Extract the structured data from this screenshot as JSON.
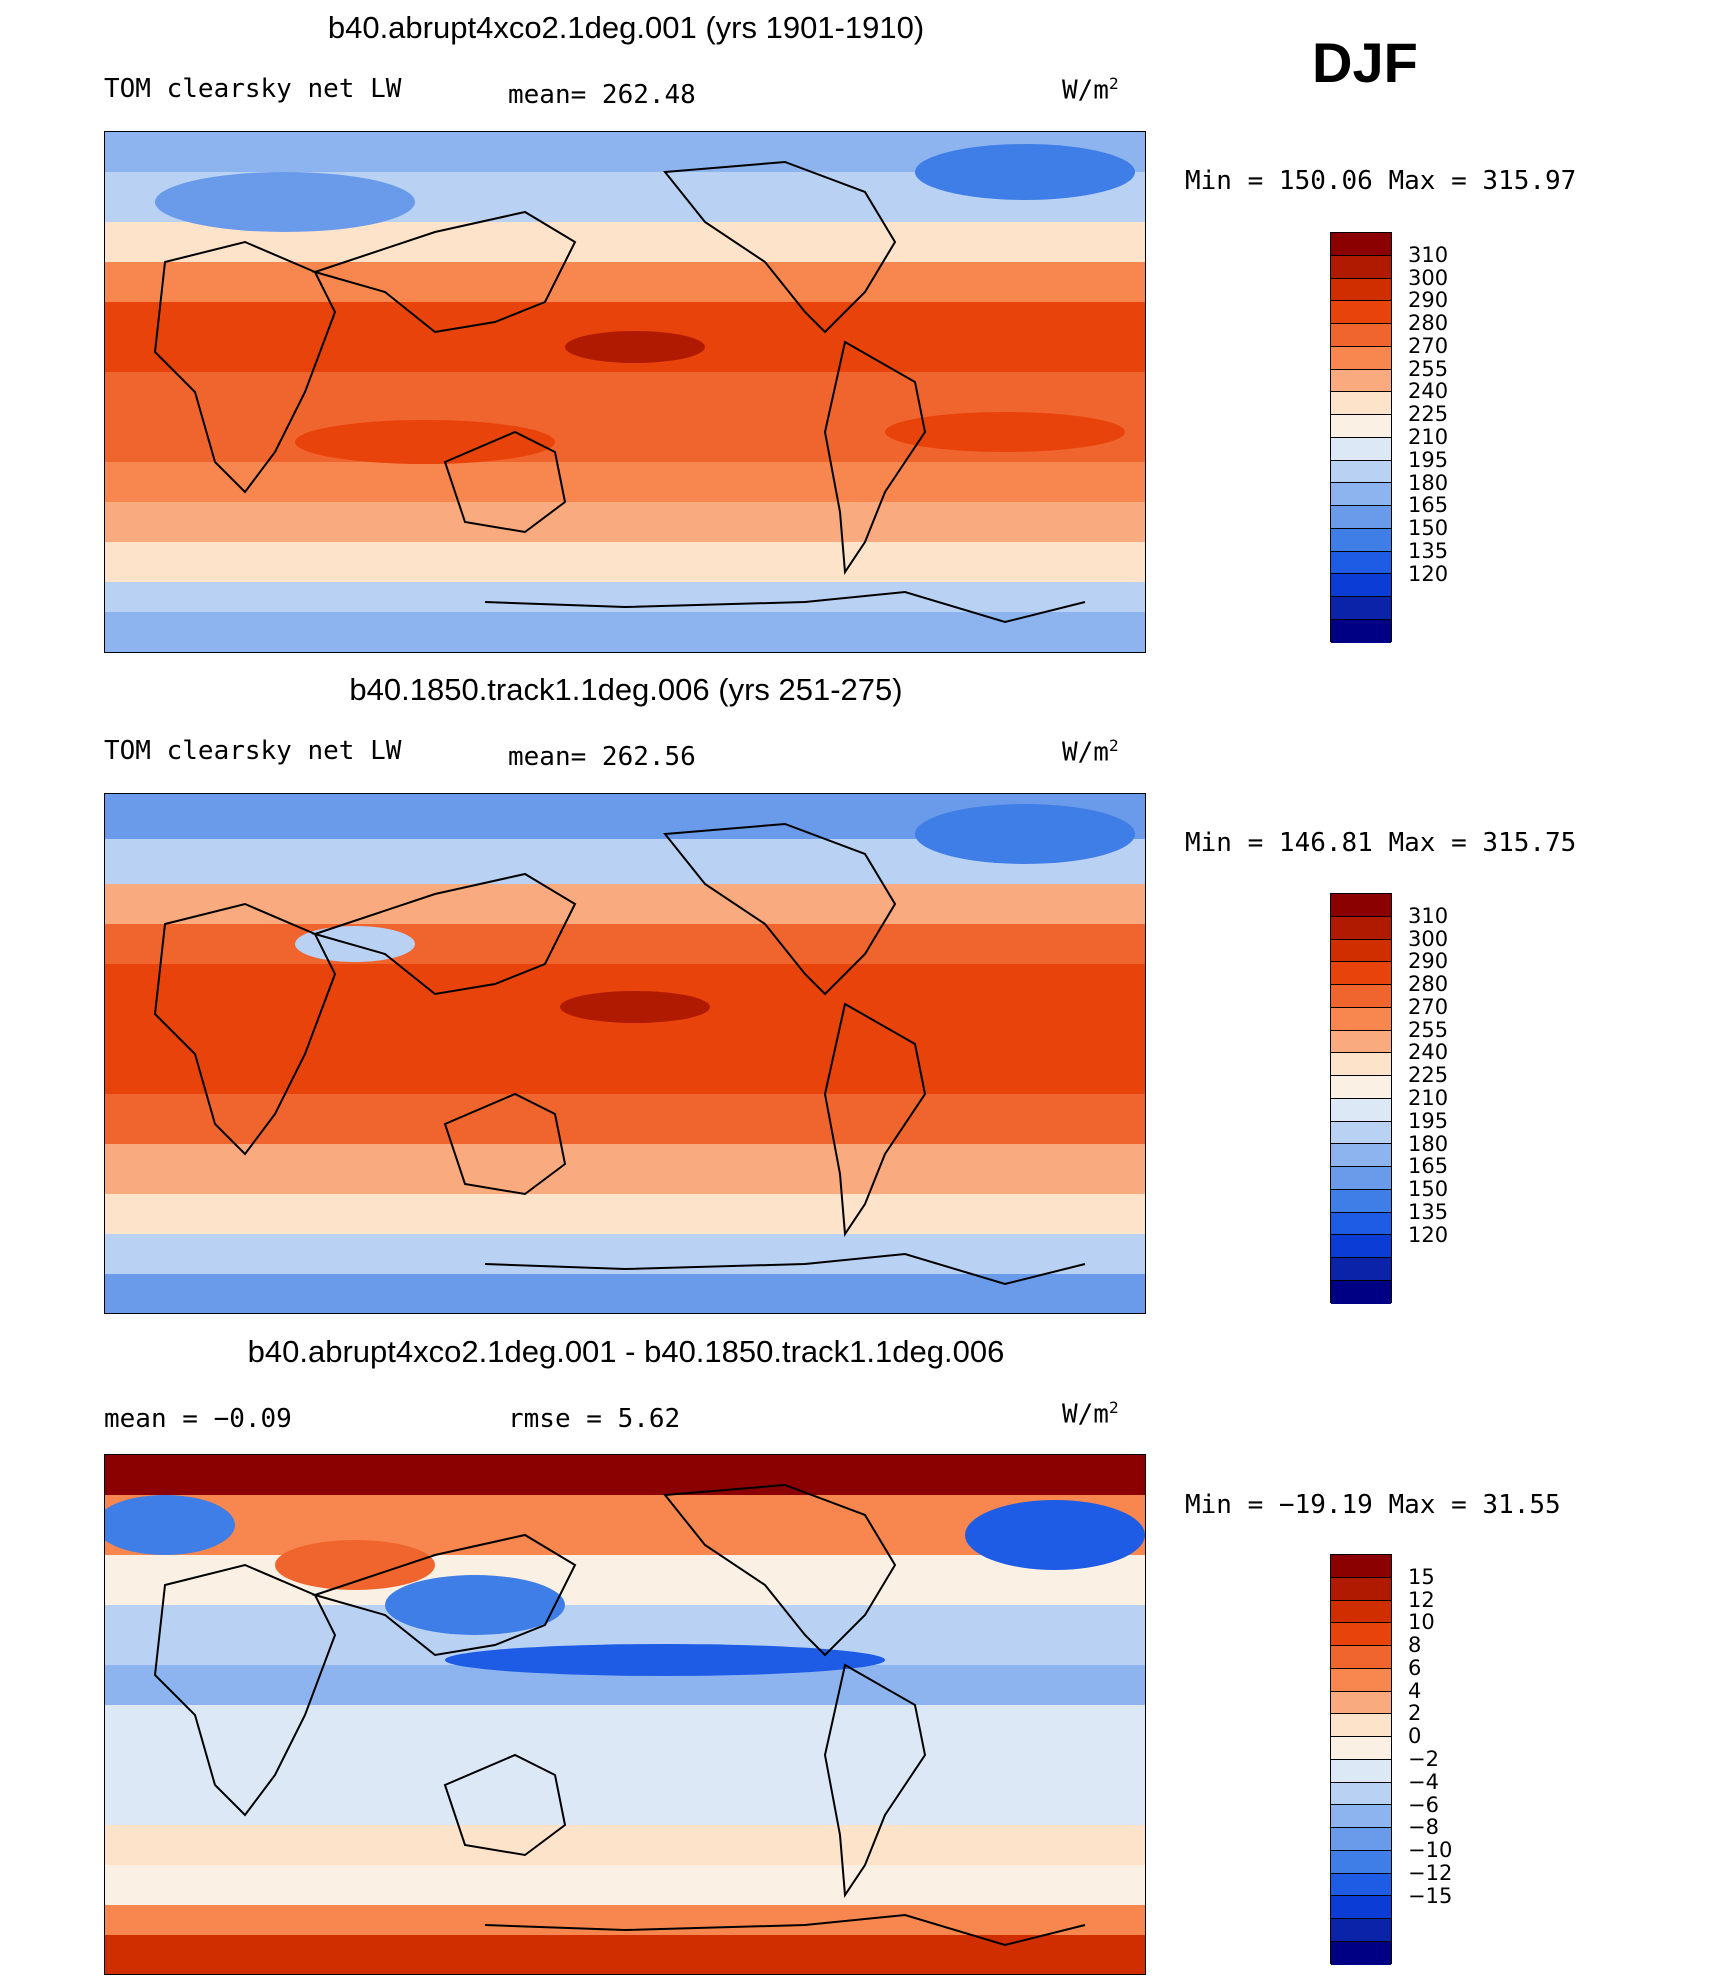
{
  "season": "DJF",
  "panels": [
    {
      "title": "b40.abrupt4xco2.1deg.001 (yrs 1901-1910)",
      "variable": "TOM clearsky net LW",
      "stat1": "mean= 262.48",
      "stat2": "",
      "units": "W/m",
      "units_sup": "2",
      "minmax": "Min = 150.06 Max = 315.97",
      "type": "abs"
    },
    {
      "title": "b40.1850.track1.1deg.006 (yrs 251-275)",
      "variable": "TOM clearsky net LW",
      "stat1": "mean= 262.56",
      "stat2": "",
      "units": "W/m",
      "units_sup": "2",
      "minmax": "Min = 146.81 Max = 315.75",
      "type": "abs"
    },
    {
      "title": "b40.abrupt4xco2.1deg.001 - b40.1850.track1.1deg.006",
      "variable": "mean =   −0.09",
      "stat1": "rmse =    5.62",
      "stat2": "",
      "units": "W/m",
      "units_sup": "2",
      "minmax": "Min = −19.19 Max =  31.55",
      "type": "diff"
    }
  ],
  "colorbars": {
    "abs": {
      "colors": [
        "#8b0000",
        "#b01a00",
        "#d12e00",
        "#e8430a",
        "#f0642d",
        "#f7874f",
        "#f9aa7e",
        "#fde3ca",
        "#fbf0e4",
        "#dde8f7",
        "#b9d2f4",
        "#8db4ef",
        "#6a9bea",
        "#3f7ee6",
        "#1e5ce6",
        "#0c3cd6",
        "#0a23a8",
        "#000084"
      ],
      "labels": [
        "310",
        "300",
        "290",
        "280",
        "270",
        "255",
        "240",
        "225",
        "210",
        "195",
        "180",
        "165",
        "150",
        "135",
        "120"
      ]
    },
    "diff": {
      "colors": [
        "#8b0000",
        "#b01a00",
        "#d12e00",
        "#e8430a",
        "#f0642d",
        "#f7874f",
        "#f9aa7e",
        "#fde3ca",
        "#fbf0e4",
        "#dde8f7",
        "#b9d2f4",
        "#8db4ef",
        "#6a9bea",
        "#3f7ee6",
        "#1e5ce6",
        "#0c3cd6",
        "#0a23a8",
        "#000084"
      ],
      "labels": [
        "15",
        "12",
        "10",
        "8",
        "6",
        "4",
        "2",
        "0",
        "−2",
        "−4",
        "−6",
        "−8",
        "−10",
        "−12",
        "−15"
      ]
    }
  }
}
